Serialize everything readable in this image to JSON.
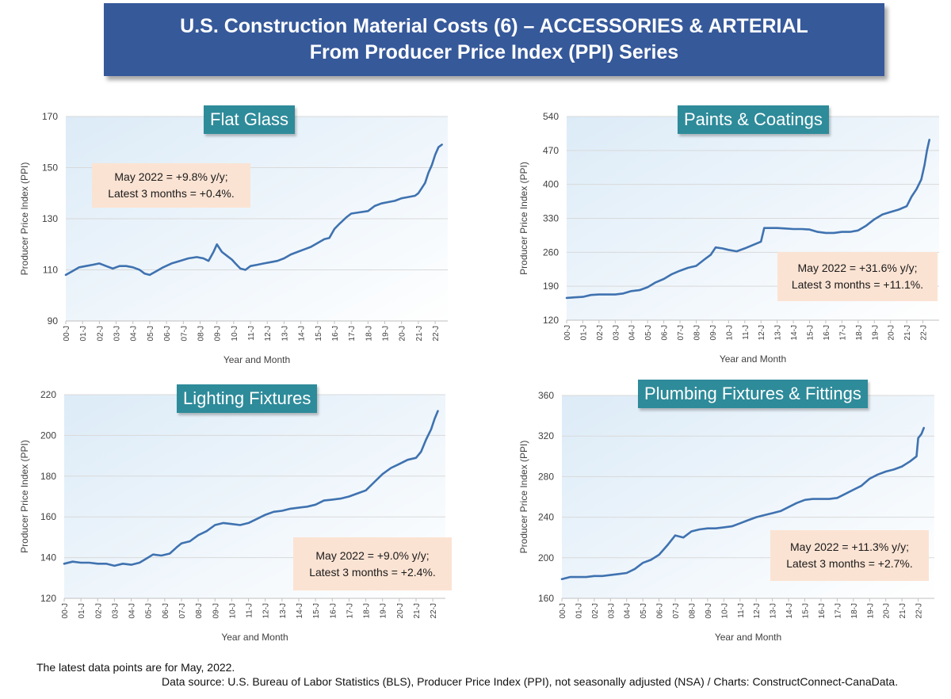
{
  "banner": {
    "line1": "U.S. Construction Material Costs (6) – ACCESSORIES & ARTERIAL",
    "line2": "From Producer Price Index (PPI) Series"
  },
  "footer": {
    "note": "The latest data points are for May, 2022.",
    "source": "Data source: U.S. Bureau of Labor Statistics (BLS), Producer Price Index (PPI), not seasonally adjusted (NSA) / Charts: ConstructConnect-CanaData."
  },
  "colors": {
    "series": "#3f72b0",
    "title_bg": "#2e8b9a",
    "note_bg": "#fbe3d3",
    "banner_bg": "#36599a"
  },
  "x_ticks": [
    "00-J",
    "01-J",
    "02-J",
    "03-J",
    "04-J",
    "05-J",
    "06-J",
    "07-J",
    "08-J",
    "09-J",
    "10-J",
    "11-J",
    "12-J",
    "13-J",
    "14-J",
    "15-J",
    "16-J",
    "17-J",
    "18-J",
    "19-J",
    "20-J",
    "21-J",
    "22-J"
  ],
  "chart_data": [
    {
      "type": "line",
      "title": "Flat Glass",
      "xlabel": "Year and Month",
      "ylabel": "Producer Price Index (PPI)",
      "ylim": [
        90,
        170
      ],
      "yticks": [
        "90",
        "110",
        "130",
        "150",
        "170"
      ],
      "annotation": [
        "May 2022 = +9.8% y/y;",
        "Latest 3 months = +0.4%."
      ],
      "series": [
        {
          "points": [
            [
              2000.0,
              108
            ],
            [
              2000.4,
              109.5
            ],
            [
              2000.8,
              111
            ],
            [
              2001.2,
              111.5
            ],
            [
              2001.6,
              112
            ],
            [
              2002.0,
              112.5
            ],
            [
              2002.4,
              111.5
            ],
            [
              2002.8,
              110.5
            ],
            [
              2003.2,
              111.5
            ],
            [
              2003.6,
              111.5
            ],
            [
              2004.0,
              111
            ],
            [
              2004.4,
              110
            ],
            [
              2004.7,
              108.5
            ],
            [
              2005.0,
              108
            ],
            [
              2005.4,
              109.5
            ],
            [
              2005.8,
              111
            ],
            [
              2006.3,
              112.5
            ],
            [
              2006.8,
              113.5
            ],
            [
              2007.3,
              114.5
            ],
            [
              2007.8,
              115
            ],
            [
              2008.2,
              114.5
            ],
            [
              2008.5,
              113.5
            ],
            [
              2008.8,
              117
            ],
            [
              2009.0,
              120
            ],
            [
              2009.3,
              117
            ],
            [
              2009.6,
              115.5
            ],
            [
              2009.9,
              114
            ],
            [
              2010.1,
              112.5
            ],
            [
              2010.4,
              110.5
            ],
            [
              2010.7,
              110
            ],
            [
              2011.0,
              111.5
            ],
            [
              2011.4,
              112
            ],
            [
              2011.8,
              112.5
            ],
            [
              2012.2,
              113
            ],
            [
              2012.6,
              113.5
            ],
            [
              2013.0,
              114.5
            ],
            [
              2013.4,
              116
            ],
            [
              2013.8,
              117
            ],
            [
              2014.2,
              118
            ],
            [
              2014.6,
              119
            ],
            [
              2015.0,
              120.5
            ],
            [
              2015.4,
              122
            ],
            [
              2015.7,
              122.5
            ],
            [
              2016.0,
              126
            ],
            [
              2016.3,
              128
            ],
            [
              2016.7,
              130.5
            ],
            [
              2017.0,
              132
            ],
            [
              2017.5,
              132.5
            ],
            [
              2018.0,
              133
            ],
            [
              2018.4,
              135
            ],
            [
              2018.8,
              136
            ],
            [
              2019.2,
              136.5
            ],
            [
              2019.6,
              137
            ],
            [
              2020.0,
              138
            ],
            [
              2020.4,
              138.5
            ],
            [
              2020.8,
              139
            ],
            [
              2021.0,
              140
            ],
            [
              2021.2,
              142
            ],
            [
              2021.4,
              144
            ],
            [
              2021.6,
              148
            ],
            [
              2021.8,
              151
            ],
            [
              2022.0,
              155
            ],
            [
              2022.2,
              158
            ],
            [
              2022.4,
              159
            ]
          ]
        }
      ]
    },
    {
      "type": "line",
      "title": "Paints & Coatings",
      "xlabel": "Year and Month",
      "ylabel": "Producer Price Index (PPI)",
      "ylim": [
        120,
        540
      ],
      "yticks": [
        "120",
        "190",
        "260",
        "330",
        "400",
        "470",
        "540"
      ],
      "annotation": [
        "May 2022 = +31.6% y/y;",
        "Latest 3 months = +11.1%."
      ],
      "series": [
        {
          "points": [
            [
              2000.0,
              166
            ],
            [
              2000.5,
              167
            ],
            [
              2001.0,
              168
            ],
            [
              2001.5,
              172
            ],
            [
              2002.0,
              173
            ],
            [
              2002.5,
              173
            ],
            [
              2003.0,
              173
            ],
            [
              2003.5,
              175
            ],
            [
              2004.0,
              180
            ],
            [
              2004.5,
              182
            ],
            [
              2005.0,
              188
            ],
            [
              2005.5,
              198
            ],
            [
              2006.0,
              205
            ],
            [
              2006.5,
              215
            ],
            [
              2007.0,
              222
            ],
            [
              2007.5,
              228
            ],
            [
              2008.0,
              232
            ],
            [
              2008.5,
              245
            ],
            [
              2008.9,
              255
            ],
            [
              2009.2,
              270
            ],
            [
              2009.6,
              268
            ],
            [
              2010.0,
              265
            ],
            [
              2010.5,
              262
            ],
            [
              2011.0,
              268
            ],
            [
              2011.5,
              275
            ],
            [
              2012.0,
              282
            ],
            [
              2012.2,
              310
            ],
            [
              2012.6,
              310
            ],
            [
              2013.0,
              310
            ],
            [
              2013.5,
              309
            ],
            [
              2014.0,
              308
            ],
            [
              2014.5,
              308
            ],
            [
              2015.0,
              307
            ],
            [
              2015.5,
              302
            ],
            [
              2016.0,
              300
            ],
            [
              2016.5,
              300
            ],
            [
              2017.0,
              302
            ],
            [
              2017.5,
              302
            ],
            [
              2018.0,
              305
            ],
            [
              2018.5,
              315
            ],
            [
              2019.0,
              328
            ],
            [
              2019.5,
              338
            ],
            [
              2020.0,
              343
            ],
            [
              2020.5,
              348
            ],
            [
              2021.0,
              355
            ],
            [
              2021.3,
              375
            ],
            [
              2021.6,
              390
            ],
            [
              2021.9,
              410
            ],
            [
              2022.1,
              440
            ],
            [
              2022.25,
              470
            ],
            [
              2022.4,
              492
            ]
          ]
        }
      ]
    },
    {
      "type": "line",
      "title": "Lighting Fixtures",
      "xlabel": "Year and Month",
      "ylabel": "Producer Price Index (PPI)",
      "ylim": [
        120,
        220
      ],
      "yticks": [
        "120",
        "140",
        "160",
        "180",
        "200",
        "220"
      ],
      "annotation": [
        "May 2022 = +9.0% y/y;",
        "Latest 3 months = +2.4%."
      ],
      "series": [
        {
          "points": [
            [
              2000.0,
              137
            ],
            [
              2000.5,
              138
            ],
            [
              2001.0,
              137.5
            ],
            [
              2001.5,
              137.5
            ],
            [
              2002.0,
              137
            ],
            [
              2002.5,
              137
            ],
            [
              2003.0,
              136
            ],
            [
              2003.5,
              137
            ],
            [
              2004.0,
              136.5
            ],
            [
              2004.5,
              137.5
            ],
            [
              2005.0,
              140
            ],
            [
              2005.3,
              141.5
            ],
            [
              2005.8,
              141
            ],
            [
              2006.3,
              142
            ],
            [
              2006.7,
              145
            ],
            [
              2007.0,
              147
            ],
            [
              2007.5,
              148
            ],
            [
              2008.0,
              151
            ],
            [
              2008.5,
              153
            ],
            [
              2009.0,
              156
            ],
            [
              2009.5,
              157
            ],
            [
              2010.0,
              156.5
            ],
            [
              2010.5,
              156
            ],
            [
              2011.0,
              157
            ],
            [
              2011.5,
              159
            ],
            [
              2012.0,
              161
            ],
            [
              2012.5,
              162.5
            ],
            [
              2013.0,
              163
            ],
            [
              2013.5,
              164
            ],
            [
              2014.0,
              164.5
            ],
            [
              2014.5,
              165
            ],
            [
              2015.0,
              166
            ],
            [
              2015.5,
              168
            ],
            [
              2016.0,
              168.5
            ],
            [
              2016.5,
              169
            ],
            [
              2017.0,
              170
            ],
            [
              2017.5,
              171.5
            ],
            [
              2018.0,
              173
            ],
            [
              2018.5,
              177
            ],
            [
              2019.0,
              181
            ],
            [
              2019.5,
              184
            ],
            [
              2020.0,
              186
            ],
            [
              2020.5,
              188
            ],
            [
              2021.0,
              189
            ],
            [
              2021.3,
              192
            ],
            [
              2021.6,
              198
            ],
            [
              2021.9,
              203
            ],
            [
              2022.1,
              208
            ],
            [
              2022.3,
              212
            ]
          ]
        }
      ]
    },
    {
      "type": "line",
      "title": "Plumbing Fixtures & Fittings",
      "xlabel": "Year and Month",
      "ylabel": "Producer Price Index (PPI)",
      "ylim": [
        160,
        360
      ],
      "yticks": [
        "160",
        "200",
        "240",
        "280",
        "320",
        "360"
      ],
      "annotation": [
        "May 2022 = +11.3% y/y;",
        "Latest 3 months = +2.7%."
      ],
      "series": [
        {
          "points": [
            [
              2000.0,
              179
            ],
            [
              2000.5,
              181
            ],
            [
              2001.0,
              181
            ],
            [
              2001.5,
              181
            ],
            [
              2002.0,
              182
            ],
            [
              2002.5,
              182
            ],
            [
              2003.0,
              183
            ],
            [
              2003.5,
              184
            ],
            [
              2004.0,
              185
            ],
            [
              2004.5,
              189
            ],
            [
              2005.0,
              195
            ],
            [
              2005.5,
              198
            ],
            [
              2006.0,
              203
            ],
            [
              2006.5,
              212
            ],
            [
              2007.0,
              222
            ],
            [
              2007.5,
              220
            ],
            [
              2008.0,
              226
            ],
            [
              2008.5,
              228
            ],
            [
              2009.0,
              229
            ],
            [
              2009.5,
              229
            ],
            [
              2010.0,
              230
            ],
            [
              2010.5,
              231
            ],
            [
              2011.0,
              234
            ],
            [
              2011.5,
              237
            ],
            [
              2012.0,
              240
            ],
            [
              2012.5,
              242
            ],
            [
              2013.0,
              244
            ],
            [
              2013.5,
              246
            ],
            [
              2014.0,
              250
            ],
            [
              2014.5,
              254
            ],
            [
              2015.0,
              257
            ],
            [
              2015.5,
              258
            ],
            [
              2016.0,
              258
            ],
            [
              2016.5,
              258
            ],
            [
              2017.0,
              259
            ],
            [
              2017.5,
              263
            ],
            [
              2018.0,
              267
            ],
            [
              2018.5,
              271
            ],
            [
              2019.0,
              278
            ],
            [
              2019.5,
              282
            ],
            [
              2020.0,
              285
            ],
            [
              2020.5,
              287
            ],
            [
              2021.0,
              290
            ],
            [
              2021.5,
              295
            ],
            [
              2021.9,
              300
            ],
            [
              2022.0,
              318
            ],
            [
              2022.2,
              322
            ],
            [
              2022.35,
              328
            ]
          ]
        }
      ]
    }
  ]
}
